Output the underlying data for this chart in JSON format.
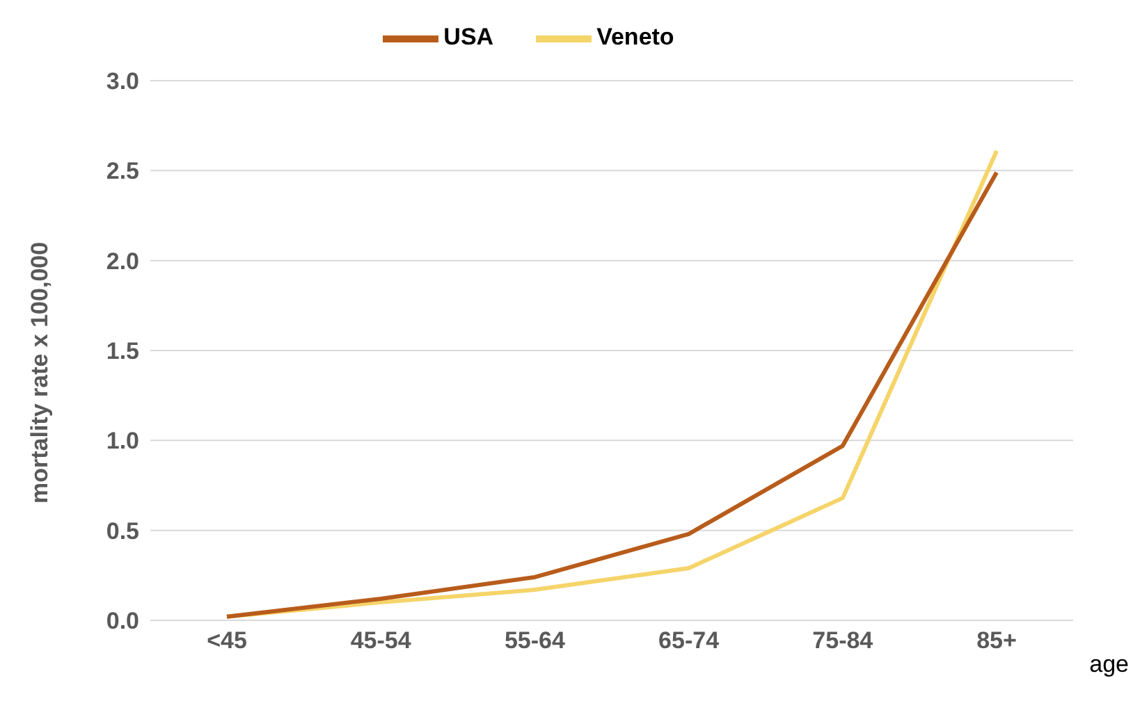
{
  "chart_data": {
    "type": "line",
    "xlabel": "age",
    "ylabel": "mortality rate x 100,000",
    "categories": [
      "<45",
      "45-54",
      "55-64",
      "65-74",
      "75-84",
      "85+"
    ],
    "series": [
      {
        "name": "Veneto",
        "color": "#f5d469",
        "values": [
          0.02,
          0.1,
          0.17,
          0.29,
          0.68,
          2.61
        ]
      },
      {
        "name": "USA",
        "color": "#b85c1b",
        "values": [
          0.02,
          0.12,
          0.24,
          0.48,
          0.97,
          2.49
        ]
      }
    ],
    "ylim": [
      0,
      3
    ],
    "yticks": [
      {
        "value": 0,
        "label": "0.0"
      },
      {
        "value": 0.5,
        "label": "0.5"
      },
      {
        "value": 1,
        "label": "1.0"
      },
      {
        "value": 1.5,
        "label": "1.5"
      },
      {
        "value": 2,
        "label": "2.0"
      },
      {
        "value": 2.5,
        "label": "2.5"
      },
      {
        "value": 3,
        "label": "3.0"
      }
    ],
    "grid": "y",
    "legend": "top",
    "marker": "none",
    "line_style": "solid"
  }
}
